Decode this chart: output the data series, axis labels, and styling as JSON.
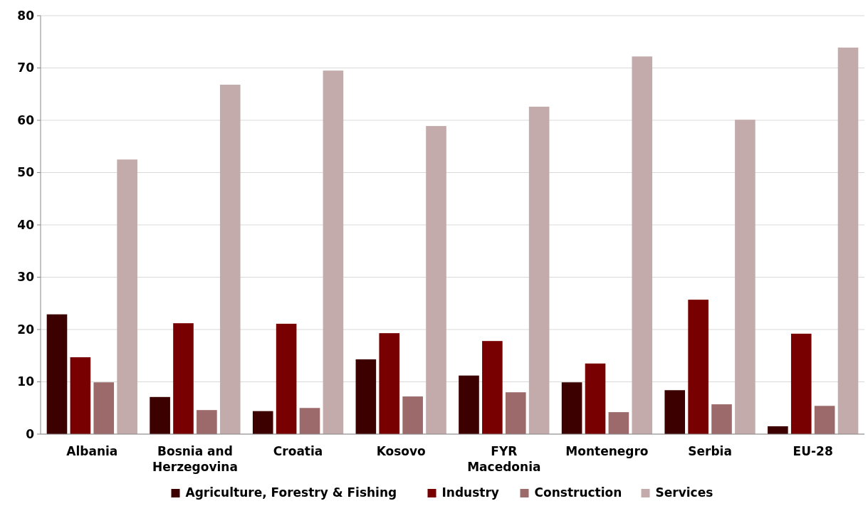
{
  "chart_data": {
    "type": "bar",
    "categories": [
      "Albania",
      "Bosnia and Herzegovina",
      "Croatia",
      "Kosovo",
      "FYR Macedonia",
      "Montenegro",
      "Serbia",
      "EU-28"
    ],
    "series": [
      {
        "name": "Agriculture, Forestry & Fishing",
        "color": "#3d0000",
        "values": [
          22.9,
          7.1,
          4.4,
          14.3,
          11.2,
          9.9,
          8.4,
          1.5
        ]
      },
      {
        "name": "Industry",
        "color": "#780000",
        "values": [
          14.7,
          21.2,
          21.1,
          19.3,
          17.8,
          13.5,
          25.7,
          19.2
        ]
      },
      {
        "name": "Construction",
        "color": "#9c6a6a",
        "values": [
          9.9,
          4.6,
          5.0,
          7.2,
          8.0,
          4.2,
          5.7,
          5.4
        ]
      },
      {
        "name": "Services",
        "color": "#c4abab",
        "values": [
          52.5,
          66.8,
          69.5,
          58.9,
          62.6,
          72.2,
          60.1,
          73.9
        ]
      }
    ],
    "ylim": [
      0,
      80
    ],
    "yticks": [
      0,
      10,
      20,
      30,
      40,
      50,
      60,
      70,
      80
    ],
    "grid": "y",
    "legend": "bottom"
  }
}
